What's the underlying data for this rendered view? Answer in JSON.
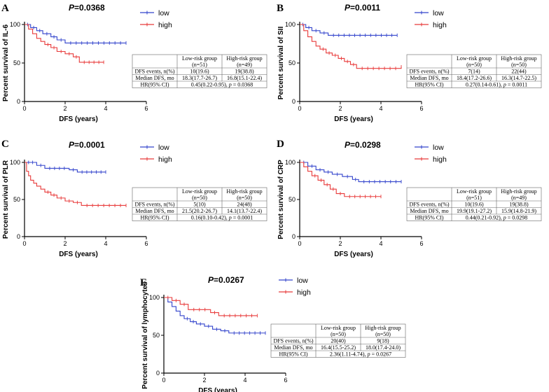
{
  "chart_data": [
    {
      "panel": "A",
      "type": "line",
      "title_p": "P",
      "title_value": "=0.0368",
      "xlabel": "DFS (years)",
      "ylabel": "Percent survival of IL-6",
      "xlim": [
        0,
        6
      ],
      "ylim": [
        0,
        100
      ],
      "xticks": [
        "0",
        "2",
        "4",
        "6"
      ],
      "yticks": [
        "0",
        "50",
        "100"
      ],
      "legend": [
        "low",
        "high"
      ],
      "series": [
        {
          "name": "low",
          "color": "#3344cc",
          "x": [
            0,
            0.3,
            0.6,
            0.9,
            1.3,
            1.6,
            2.0,
            5.0
          ],
          "y": [
            100,
            96,
            92,
            88,
            84,
            80,
            76,
            76
          ]
        },
        {
          "name": "high",
          "color": "#e83a3a",
          "x": [
            0,
            0.2,
            0.4,
            0.6,
            0.8,
            1.0,
            1.3,
            1.6,
            2.0,
            2.4,
            2.7,
            3.9
          ],
          "y": [
            100,
            94,
            88,
            82,
            78,
            74,
            70,
            65,
            62,
            58,
            51,
            51
          ]
        }
      ],
      "table": {
        "header1": [
          "",
          "Low-risk group",
          "High-risk group"
        ],
        "header2": [
          "",
          "(n=51)",
          "(n=49)"
        ],
        "rows": [
          [
            "DFS events, n(%)",
            "10(19.6)",
            "19(38.8)"
          ],
          [
            "Median DFS, mo",
            "18.3(17.7-26.7)",
            "16.8(15.1-22.4)"
          ]
        ],
        "hr_label": "HR(95% CI)",
        "hr_value": "0.45(0.22-0.95), ",
        "hr_p": "p",
        "hr_pval": " = 0.0368"
      }
    },
    {
      "panel": "B",
      "type": "line",
      "title_p": "P",
      "title_value": "=0.0011",
      "xlabel": "DFS (years)",
      "ylabel": "Percent survival of SII",
      "xlim": [
        0,
        6
      ],
      "ylim": [
        0,
        100
      ],
      "xticks": [
        "0",
        "2",
        "4",
        "6"
      ],
      "yticks": [
        "0",
        "50",
        "100"
      ],
      "legend": [
        "low",
        "high"
      ],
      "series": [
        {
          "name": "low",
          "color": "#3344cc",
          "x": [
            0,
            0.3,
            0.6,
            1.0,
            1.4,
            4.8
          ],
          "y": [
            100,
            96,
            92,
            89,
            86,
            86
          ]
        },
        {
          "name": "high",
          "color": "#e83a3a",
          "x": [
            0,
            0.2,
            0.4,
            0.6,
            0.8,
            1.0,
            1.3,
            1.6,
            1.9,
            2.2,
            2.5,
            2.8,
            5.0
          ],
          "y": [
            100,
            92,
            84,
            78,
            72,
            68,
            63,
            60,
            56,
            52,
            48,
            43,
            45
          ]
        }
      ],
      "table": {
        "header1": [
          "",
          "Low-risk group",
          "High-risk group"
        ],
        "header2": [
          "",
          "(n=50)",
          "(n=50)"
        ],
        "rows": [
          [
            "DFS events, n(%)",
            "7(14)",
            "22(44)"
          ],
          [
            "Median DFS, mo",
            "18.4(17.2-26.6)",
            "16.3(14.7-22.5)"
          ]
        ],
        "hr_label": "HR(95% CI)",
        "hr_value": "0.27(0.14-0.61), ",
        "hr_p": "p",
        "hr_pval": " = 0.0011"
      }
    },
    {
      "panel": "C",
      "type": "line",
      "title_p": "P",
      "title_value": "=0.0001",
      "xlabel": "DFS (years)",
      "ylabel": "Percent survival of PLR",
      "xlim": [
        0,
        6
      ],
      "ylim": [
        0,
        100
      ],
      "xticks": [
        "0",
        "2",
        "4",
        "6"
      ],
      "yticks": [
        "0",
        "50",
        "100"
      ],
      "legend": [
        "low",
        "high"
      ],
      "series": [
        {
          "name": "low",
          "color": "#3344cc",
          "x": [
            0,
            0.6,
            1.0,
            2.2,
            2.6,
            4.0
          ],
          "y": [
            100,
            96,
            92,
            90,
            87,
            87
          ]
        },
        {
          "name": "high",
          "color": "#e83a3a",
          "x": [
            0,
            0.1,
            0.2,
            0.3,
            0.45,
            0.6,
            0.8,
            1.0,
            1.3,
            1.6,
            2.0,
            2.4,
            2.8,
            5.0
          ],
          "y": [
            100,
            88,
            82,
            76,
            72,
            68,
            64,
            60,
            56,
            52,
            48,
            46,
            42,
            42
          ]
        }
      ],
      "table": {
        "header1": [
          "",
          "Low-risk group",
          "High-risk group"
        ],
        "header2": [
          "",
          "(n=50)",
          "(n=50)"
        ],
        "rows": [
          [
            "DFS events, n(%)",
            "5(10)",
            "24(48)"
          ],
          [
            "Median DFS, mo",
            "21.5(20.2-26.7)",
            "14.1(13.7-22.4)"
          ]
        ],
        "hr_label": "HR(95% CI)",
        "hr_value": "0.16(0.10-0.42), ",
        "hr_p": "p",
        "hr_pval": " = 0.0001"
      }
    },
    {
      "panel": "D",
      "type": "line",
      "title_p": "P",
      "title_value": "=0.0298",
      "xlabel": "DFS (years)",
      "ylabel": "Percent survival of CRP",
      "xlim": [
        0,
        6
      ],
      "ylim": [
        0,
        100
      ],
      "xticks": [
        "0",
        "2",
        "4",
        "6"
      ],
      "yticks": [
        "0",
        "50",
        "100"
      ],
      "legend": [
        "low",
        "high"
      ],
      "series": [
        {
          "name": "low",
          "color": "#3344cc",
          "x": [
            0,
            0.4,
            0.8,
            1.2,
            1.6,
            2.1,
            2.6,
            2.9,
            5.0
          ],
          "y": [
            100,
            95,
            90,
            87,
            84,
            81,
            77,
            74,
            74
          ]
        },
        {
          "name": "high",
          "color": "#e83a3a",
          "x": [
            0,
            0.2,
            0.4,
            0.6,
            0.9,
            1.2,
            1.5,
            1.8,
            2.2,
            4.0
          ],
          "y": [
            100,
            94,
            88,
            82,
            76,
            70,
            64,
            58,
            54,
            54
          ]
        }
      ],
      "table": {
        "header1": [
          "",
          "Low-risk group",
          "High-risk group"
        ],
        "header2": [
          "",
          "(n=51)",
          "(n=49)"
        ],
        "rows": [
          [
            "DFS events, n(%)",
            "10(19.6)",
            "19(38.8)"
          ],
          [
            "Median DFS, mo",
            "19.9(19.1-27.2)",
            "15.9(14.8-21.9)"
          ]
        ],
        "hr_label": "HR(95% CI)",
        "hr_value": "0.44(0.21-0.92), ",
        "hr_p": "p",
        "hr_pval": " = 0.0298"
      }
    },
    {
      "panel": "E",
      "type": "line",
      "title_p": "P",
      "title_value": "=0.0267",
      "xlabel": "DFS (years)",
      "ylabel": "Percent survival of lymphocytes",
      "xlim": [
        0,
        6
      ],
      "ylim": [
        0,
        100
      ],
      "xticks": [
        "0",
        "2",
        "4",
        "6"
      ],
      "yticks": [
        "0",
        "50",
        "100"
      ],
      "legend": [
        "low",
        "high"
      ],
      "series": [
        {
          "name": "low",
          "color": "#3344cc",
          "x": [
            0,
            0.2,
            0.4,
            0.6,
            0.8,
            1.0,
            1.3,
            1.6,
            2.0,
            2.4,
            2.8,
            3.2,
            5.0
          ],
          "y": [
            100,
            94,
            88,
            82,
            76,
            72,
            68,
            65,
            62,
            58,
            56,
            53,
            53
          ]
        },
        {
          "name": "high",
          "color": "#e83a3a",
          "x": [
            0,
            0.4,
            0.8,
            1.2,
            2.3,
            2.7,
            4.6
          ],
          "y": [
            100,
            96,
            91,
            84,
            80,
            76,
            76
          ]
        }
      ],
      "table": {
        "header1": [
          "",
          "Low-risk group",
          "High-risk group"
        ],
        "header2": [
          "",
          "(n=50)",
          "(n=50)"
        ],
        "rows": [
          [
            "DFS events, n(%)",
            "20(40)",
            "9(18)"
          ],
          [
            "Median DFS, mo",
            "16.4(15.5-25.2)",
            "18.0(17.4-24.0)"
          ]
        ],
        "hr_label": "HR(95% CI)",
        "hr_value": "2.36(1.11-4.74), ",
        "hr_p": "p",
        "hr_pval": " = 0.0267"
      }
    }
  ]
}
